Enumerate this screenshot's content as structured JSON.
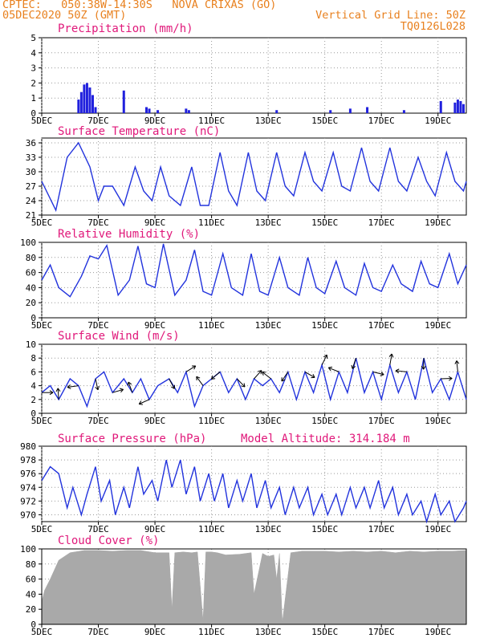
{
  "header": {
    "line1": "CPTEC:   050:38W-14:30S   NOVA CRIXAS (GO)",
    "line2": "05DEC2020 50Z (GMT)",
    "grid_note": "Vertical Grid Line: 50Z",
    "code": "TQ0126L028"
  },
  "colors": {
    "header": "#e8801e",
    "title": "#e0187a",
    "line": "#2233dd",
    "bars": "#2020dd",
    "cloud": "#a9a9a9",
    "wind": "#000000"
  },
  "x_axis": {
    "tick_labels": [
      "5DEC",
      "7DEC",
      "9DEC",
      "11DEC",
      "13DEC",
      "15DEC",
      "17DEC",
      "19DEC"
    ],
    "tick_days": [
      5,
      7,
      9,
      11,
      13,
      15,
      17,
      19
    ],
    "range_days": [
      5,
      20
    ]
  },
  "chart_data": [
    {
      "id": "precip",
      "type": "bar",
      "title": "Precipitation (mm/h)",
      "ylim": [
        0,
        5
      ],
      "yticks": [
        0,
        1,
        2,
        3,
        4,
        5
      ],
      "grid": true,
      "series": [
        {
          "x": [
            6.3,
            6.4,
            6.5,
            6.6,
            6.7,
            6.8,
            6.9,
            7.9,
            8.7,
            8.8,
            9.1,
            10.1,
            10.2,
            13.3,
            15.2,
            15.9,
            16.5,
            17.8,
            19.1,
            19.6,
            19.7,
            19.8,
            19.9
          ],
          "values": [
            0.9,
            1.4,
            1.9,
            2.0,
            1.7,
            1.2,
            0.4,
            1.5,
            0.4,
            0.3,
            0.2,
            0.3,
            0.2,
            0.2,
            0.2,
            0.3,
            0.4,
            0.2,
            0.8,
            0.7,
            0.9,
            0.8,
            0.6
          ]
        }
      ]
    },
    {
      "id": "temp",
      "type": "line",
      "title": "Surface Temperature (nC)",
      "ylim": [
        21,
        37
      ],
      "yticks": [
        21,
        24,
        27,
        30,
        33,
        36
      ],
      "grid": true,
      "series": [
        {
          "x": [
            5.0,
            5.5,
            5.9,
            6.3,
            6.7,
            7.0,
            7.2,
            7.5,
            7.9,
            8.3,
            8.6,
            8.9,
            9.2,
            9.5,
            9.9,
            10.3,
            10.6,
            10.9,
            11.3,
            11.6,
            11.9,
            12.3,
            12.6,
            12.9,
            13.3,
            13.6,
            13.9,
            14.3,
            14.6,
            14.9,
            15.3,
            15.6,
            15.9,
            16.3,
            16.6,
            16.9,
            17.3,
            17.6,
            17.9,
            18.3,
            18.6,
            18.9,
            19.3,
            19.6,
            19.9,
            20.0
          ],
          "values": [
            28,
            22,
            33,
            36,
            31,
            24,
            27,
            27,
            23,
            31,
            26,
            24,
            31,
            25,
            23,
            31,
            23,
            23,
            34,
            26,
            23,
            34,
            26,
            24,
            34,
            27,
            25,
            34,
            28,
            26,
            34,
            27,
            26,
            35,
            28,
            26,
            35,
            28,
            26,
            33,
            28,
            25,
            34,
            28,
            26,
            28
          ]
        }
      ]
    },
    {
      "id": "rh",
      "type": "line",
      "title": "Relative Humidity (%)",
      "ylim": [
        0,
        100
      ],
      "yticks": [
        0,
        20,
        40,
        60,
        80,
        100
      ],
      "grid": true,
      "series": [
        {
          "x": [
            5.0,
            5.3,
            5.6,
            6.0,
            6.4,
            6.7,
            7.0,
            7.3,
            7.7,
            8.1,
            8.4,
            8.7,
            9.0,
            9.3,
            9.7,
            10.1,
            10.4,
            10.7,
            11.0,
            11.4,
            11.7,
            12.1,
            12.4,
            12.7,
            13.0,
            13.4,
            13.7,
            14.1,
            14.4,
            14.7,
            15.0,
            15.4,
            15.7,
            16.1,
            16.4,
            16.7,
            17.0,
            17.4,
            17.7,
            18.1,
            18.4,
            18.7,
            19.0,
            19.4,
            19.7,
            20.0
          ],
          "values": [
            50,
            70,
            40,
            28,
            55,
            82,
            78,
            96,
            30,
            50,
            95,
            45,
            40,
            98,
            30,
            50,
            90,
            35,
            30,
            85,
            40,
            30,
            85,
            35,
            30,
            80,
            40,
            30,
            80,
            40,
            32,
            75,
            40,
            30,
            72,
            40,
            35,
            70,
            45,
            35,
            75,
            45,
            40,
            85,
            45,
            70
          ]
        }
      ]
    },
    {
      "id": "wind",
      "type": "line",
      "title": "Surface Wind (m/s)",
      "ylim": [
        0,
        10
      ],
      "yticks": [
        0,
        2,
        4,
        6,
        8,
        10
      ],
      "grid": true,
      "series": [
        {
          "x": [
            5.0,
            5.3,
            5.6,
            6.0,
            6.3,
            6.6,
            6.9,
            7.2,
            7.5,
            7.9,
            8.2,
            8.5,
            8.8,
            9.1,
            9.5,
            9.8,
            10.1,
            10.4,
            10.7,
            11.0,
            11.3,
            11.6,
            11.9,
            12.2,
            12.5,
            12.8,
            13.1,
            13.4,
            13.7,
            14.0,
            14.3,
            14.6,
            14.9,
            15.2,
            15.5,
            15.8,
            16.1,
            16.4,
            16.7,
            17.0,
            17.3,
            17.6,
            17.9,
            18.2,
            18.5,
            18.8,
            19.1,
            19.4,
            19.7,
            20.0
          ],
          "values": [
            3,
            4,
            2,
            5,
            4,
            1,
            5,
            6,
            3,
            5,
            3,
            5,
            2,
            4,
            5,
            3,
            6,
            1,
            4,
            5,
            6,
            3,
            5,
            2,
            5,
            4,
            5,
            3,
            6,
            2,
            6,
            3,
            7,
            2,
            6,
            3,
            8,
            3,
            6,
            2,
            7,
            3,
            6,
            2,
            8,
            3,
            5,
            2,
            6,
            2
          ]
        }
      ]
    },
    {
      "id": "pressure",
      "type": "line",
      "title": "Surface Pressure (hPa)",
      "subtitle": "Model Altitude: 314.184 m",
      "ylim": [
        969,
        980
      ],
      "yticks": [
        970,
        972,
        974,
        976,
        978,
        980
      ],
      "grid": true,
      "series": [
        {
          "x": [
            5.0,
            5.3,
            5.6,
            5.9,
            6.1,
            6.4,
            6.6,
            6.9,
            7.1,
            7.4,
            7.6,
            7.9,
            8.1,
            8.4,
            8.6,
            8.9,
            9.1,
            9.4,
            9.6,
            9.9,
            10.1,
            10.4,
            10.6,
            10.9,
            11.1,
            11.4,
            11.6,
            11.9,
            12.1,
            12.4,
            12.6,
            12.9,
            13.1,
            13.4,
            13.6,
            13.9,
            14.1,
            14.4,
            14.6,
            14.9,
            15.1,
            15.4,
            15.6,
            15.9,
            16.1,
            16.4,
            16.6,
            16.9,
            17.1,
            17.4,
            17.6,
            17.9,
            18.1,
            18.4,
            18.6,
            18.9,
            19.1,
            19.4,
            19.6,
            19.9,
            20.0
          ],
          "values": [
            975,
            977,
            976,
            971,
            974,
            970,
            973,
            977,
            972,
            975,
            970,
            974,
            971,
            977,
            973,
            975,
            972,
            978,
            974,
            978,
            973,
            977,
            972,
            976,
            972,
            976,
            971,
            975,
            972,
            976,
            971,
            975,
            971,
            974,
            970,
            974,
            971,
            974,
            970,
            973,
            970,
            973,
            970,
            974,
            971,
            974,
            971,
            975,
            971,
            974,
            970,
            973,
            970,
            972,
            969,
            973,
            970,
            972,
            969,
            971,
            972
          ]
        }
      ]
    },
    {
      "id": "cloud",
      "type": "area",
      "title": "Cloud Cover (%)",
      "ylim": [
        0,
        100
      ],
      "yticks": [
        0,
        20,
        40,
        60,
        80,
        100
      ],
      "grid": true,
      "series": [
        {
          "x": [
            5.0,
            5.1,
            5.3,
            5.6,
            6.0,
            6.5,
            7.0,
            7.5,
            8.0,
            8.5,
            9.0,
            9.5,
            9.6,
            9.7,
            10.0,
            10.3,
            10.5,
            10.7,
            10.8,
            11.0,
            11.2,
            11.5,
            12.0,
            12.4,
            12.5,
            12.8,
            13.0,
            13.2,
            13.3,
            13.4,
            13.5,
            13.8,
            14.2,
            14.5,
            15.0,
            15.5,
            16.0,
            16.5,
            17.0,
            17.5,
            18.0,
            18.5,
            19.0,
            19.5,
            20.0
          ],
          "values": [
            30,
            45,
            60,
            85,
            95,
            98,
            98,
            97,
            98,
            98,
            95,
            95,
            20,
            95,
            96,
            95,
            96,
            5,
            96,
            96,
            95,
            92,
            93,
            95,
            40,
            94,
            90,
            92,
            60,
            94,
            3,
            95,
            97,
            97,
            97,
            96,
            97,
            96,
            97,
            95,
            97,
            96,
            97,
            97,
            98
          ]
        }
      ]
    }
  ]
}
